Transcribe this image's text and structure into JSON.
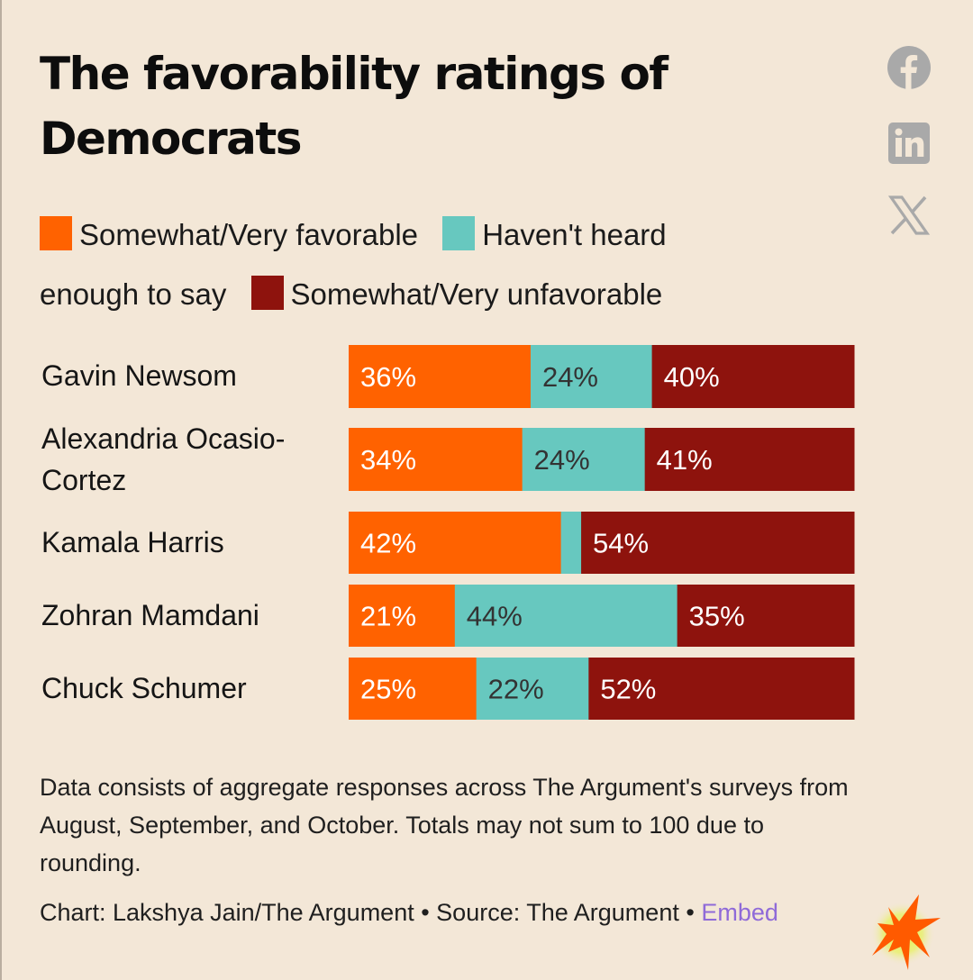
{
  "header": {
    "title": "The favorability ratings of Democrats"
  },
  "social": [
    {
      "name": "facebook-icon",
      "label": "Facebook"
    },
    {
      "name": "linkedin-icon",
      "label": "LinkedIn"
    },
    {
      "name": "x-icon",
      "label": "X"
    }
  ],
  "colors": {
    "favorable": "#ff6200",
    "not_heard": "#67c8bf",
    "unfavorable": "#8e130d",
    "background": "#f3e7d7",
    "icon_gray": "#a9a9a9",
    "embed_link": "#8f6ad8"
  },
  "chart_data": {
    "type": "bar",
    "orientation": "horizontal",
    "stacked": true,
    "title": "The favorability ratings of Democrats",
    "xlabel": "",
    "ylabel": "",
    "xlim": [
      0,
      100
    ],
    "grid": false,
    "legend_position": "top",
    "categories": [
      "Gavin Newsom",
      "Alexandria Ocasio-Cortez",
      "Kamala Harris",
      "Zohran Mamdani",
      "Chuck Schumer"
    ],
    "series": [
      {
        "name": "Somewhat/Very favorable",
        "color": "#ff6200",
        "label_color": "#ffffff",
        "values": [
          36,
          34,
          42,
          21,
          25
        ],
        "labels": [
          "36%",
          "34%",
          "42%",
          "21%",
          "25%"
        ]
      },
      {
        "name": "Haven't heard enough to say",
        "color": "#67c8bf",
        "label_color": "#333333",
        "values": [
          24,
          24,
          4,
          44,
          22
        ],
        "labels": [
          "24%",
          "24%",
          "",
          "44%",
          "22%"
        ]
      },
      {
        "name": "Somewhat/Very unfavorable",
        "color": "#8e130d",
        "label_color": "#ffffff",
        "values": [
          40,
          41,
          54,
          35,
          52
        ],
        "labels": [
          "40%",
          "41%",
          "54%",
          "35%",
          "52%"
        ]
      }
    ]
  },
  "legend": {
    "items": [
      {
        "label": "Somewhat/Very favorable",
        "color": "#ff6200"
      },
      {
        "label": "Haven't heard enough to say",
        "color": "#67c8bf"
      },
      {
        "label": "Somewhat/Very unfavorable",
        "color": "#8e130d"
      }
    ]
  },
  "rows": [
    {
      "label": "Gavin Newsom"
    },
    {
      "label": "Alexandria Ocasio-Cortez"
    },
    {
      "label": "Kamala Harris"
    },
    {
      "label": "Zohran Mamdani"
    },
    {
      "label": "Chuck Schumer"
    }
  ],
  "footer": {
    "note": "Data consists of aggregate responses across The Argument's surveys from August, September, and October. Totals may not sum to 100 due to rounding.",
    "credit": "Chart: Lakshya Jain/The Argument • Source: The Argument •",
    "embed_label": "Embed"
  }
}
